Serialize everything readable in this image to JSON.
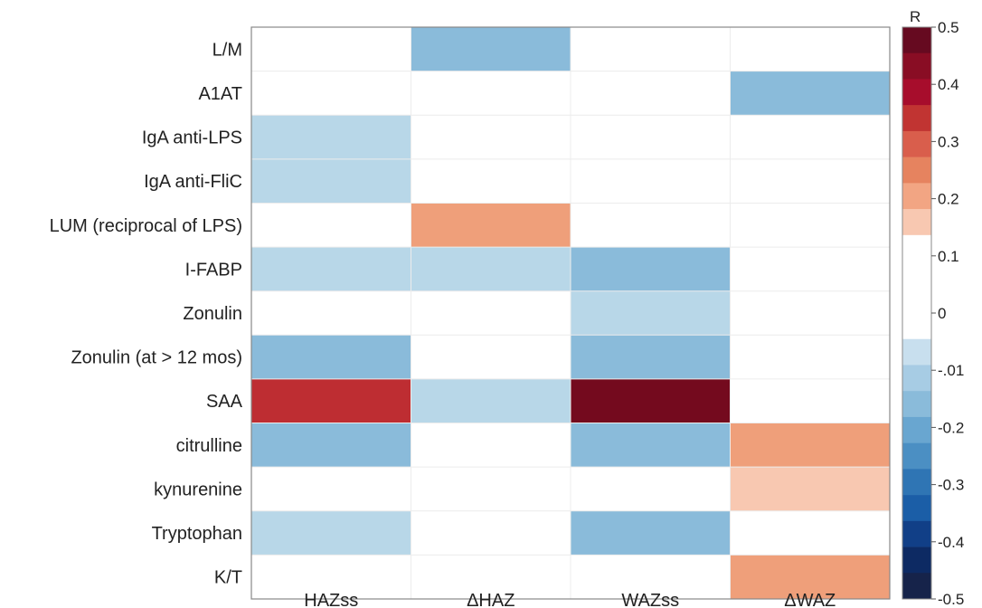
{
  "chart_data": {
    "type": "heatmap",
    "rows": [
      "L/M",
      "A1AT",
      "IgA anti-LPS",
      "IgA anti-FliC",
      "LUM (reciprocal of LPS)",
      "I-FABP",
      "Zonulin",
      "Zonulin (at > 12 mos)",
      "SAA",
      "citrulline",
      "kynurenine",
      "Tryptophan",
      "K/T"
    ],
    "columns": [
      "HAZss",
      "ΔHAZ",
      "WAZss",
      "ΔWAZ"
    ],
    "values": [
      [
        0,
        -0.2,
        0,
        0
      ],
      [
        0,
        0,
        0,
        -0.2
      ],
      [
        -0.1,
        0,
        0,
        0
      ],
      [
        -0.1,
        0,
        0,
        0
      ],
      [
        0,
        0.15,
        0,
        0
      ],
      [
        -0.1,
        -0.1,
        -0.2,
        0
      ],
      [
        0,
        0,
        -0.1,
        0
      ],
      [
        -0.2,
        0,
        -0.2,
        0
      ],
      [
        0.35,
        -0.1,
        0.5,
        0
      ],
      [
        -0.2,
        0,
        -0.2,
        0.15
      ],
      [
        0,
        0,
        0,
        0.1
      ],
      [
        -0.1,
        0,
        -0.2,
        0
      ],
      [
        0,
        0,
        0,
        0.15
      ]
    ],
    "colorbar": {
      "title": "R",
      "tick_labels": [
        "0.5",
        "0.4",
        "0.3",
        "0.2",
        "0.1",
        "0",
        "-.01",
        "-0.2",
        "-0.3",
        "-0.4",
        "-0.5"
      ],
      "colors": [
        "#660a20",
        "#890d24",
        "#a70d2c",
        "#c13432",
        "#d95e4c",
        "#e6835f",
        "#f2a583",
        "#f8c8b1",
        "#ffffff",
        "#ffffff",
        "#ffffff",
        "#ffffff",
        "#c8dfee",
        "#a7cce4",
        "#8abbda",
        "#69a6d0",
        "#4b8fc3",
        "#2f75b4",
        "#1b5ea7",
        "#113f87",
        "#0d2a63",
        "#16234a"
      ]
    }
  }
}
